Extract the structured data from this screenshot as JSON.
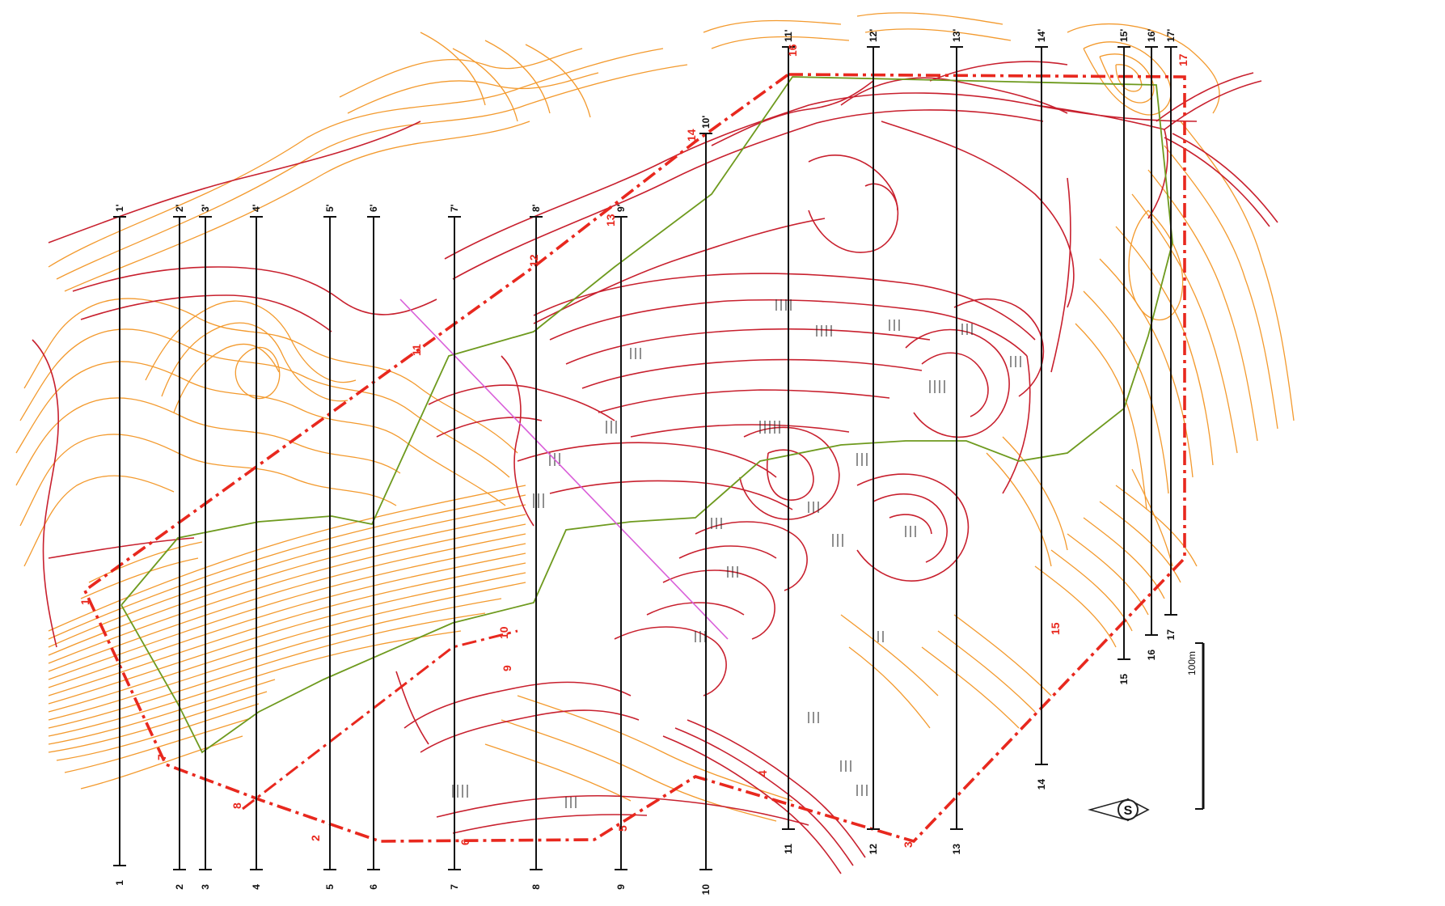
{
  "colors": {
    "background": "#ffffff",
    "contour_minor": "#f39a2e",
    "contour_major": "#c8202e",
    "boundary": "#e8281e",
    "profile_line": "#111111",
    "green_line": "#6e9a1e",
    "magenta_line": "#d95fd9"
  },
  "profiles": [
    {
      "top": "1'",
      "bottom": "1"
    },
    {
      "top": "2'",
      "bottom": "2"
    },
    {
      "top": "3'",
      "bottom": "3"
    },
    {
      "top": "4'",
      "bottom": "4"
    },
    {
      "top": "5'",
      "bottom": "5"
    },
    {
      "top": "6'",
      "bottom": "6"
    },
    {
      "top": "7'",
      "bottom": "7"
    },
    {
      "top": "8'",
      "bottom": "8"
    },
    {
      "top": "9'",
      "bottom": "9"
    },
    {
      "top": "10'",
      "bottom": "10"
    },
    {
      "top": "11'",
      "bottom": "11"
    },
    {
      "top": "12'",
      "bottom": "12"
    },
    {
      "top": "13'",
      "bottom": "13"
    },
    {
      "top": "14'",
      "bottom": "14"
    },
    {
      "top": "15'",
      "bottom": "15"
    },
    {
      "top": "16'",
      "bottom": "16"
    },
    {
      "top": "17'",
      "bottom": "17"
    }
  ],
  "boundary_points": [
    "1",
    "2",
    "3",
    "4",
    "5",
    "6",
    "7",
    "8",
    "9",
    "10",
    "11",
    "12",
    "13",
    "14",
    "15",
    "16",
    "17"
  ],
  "scale_bar": {
    "label": "100m"
  },
  "north_arrow": {
    "letter": "S",
    "icon": "north-arrow-icon"
  }
}
